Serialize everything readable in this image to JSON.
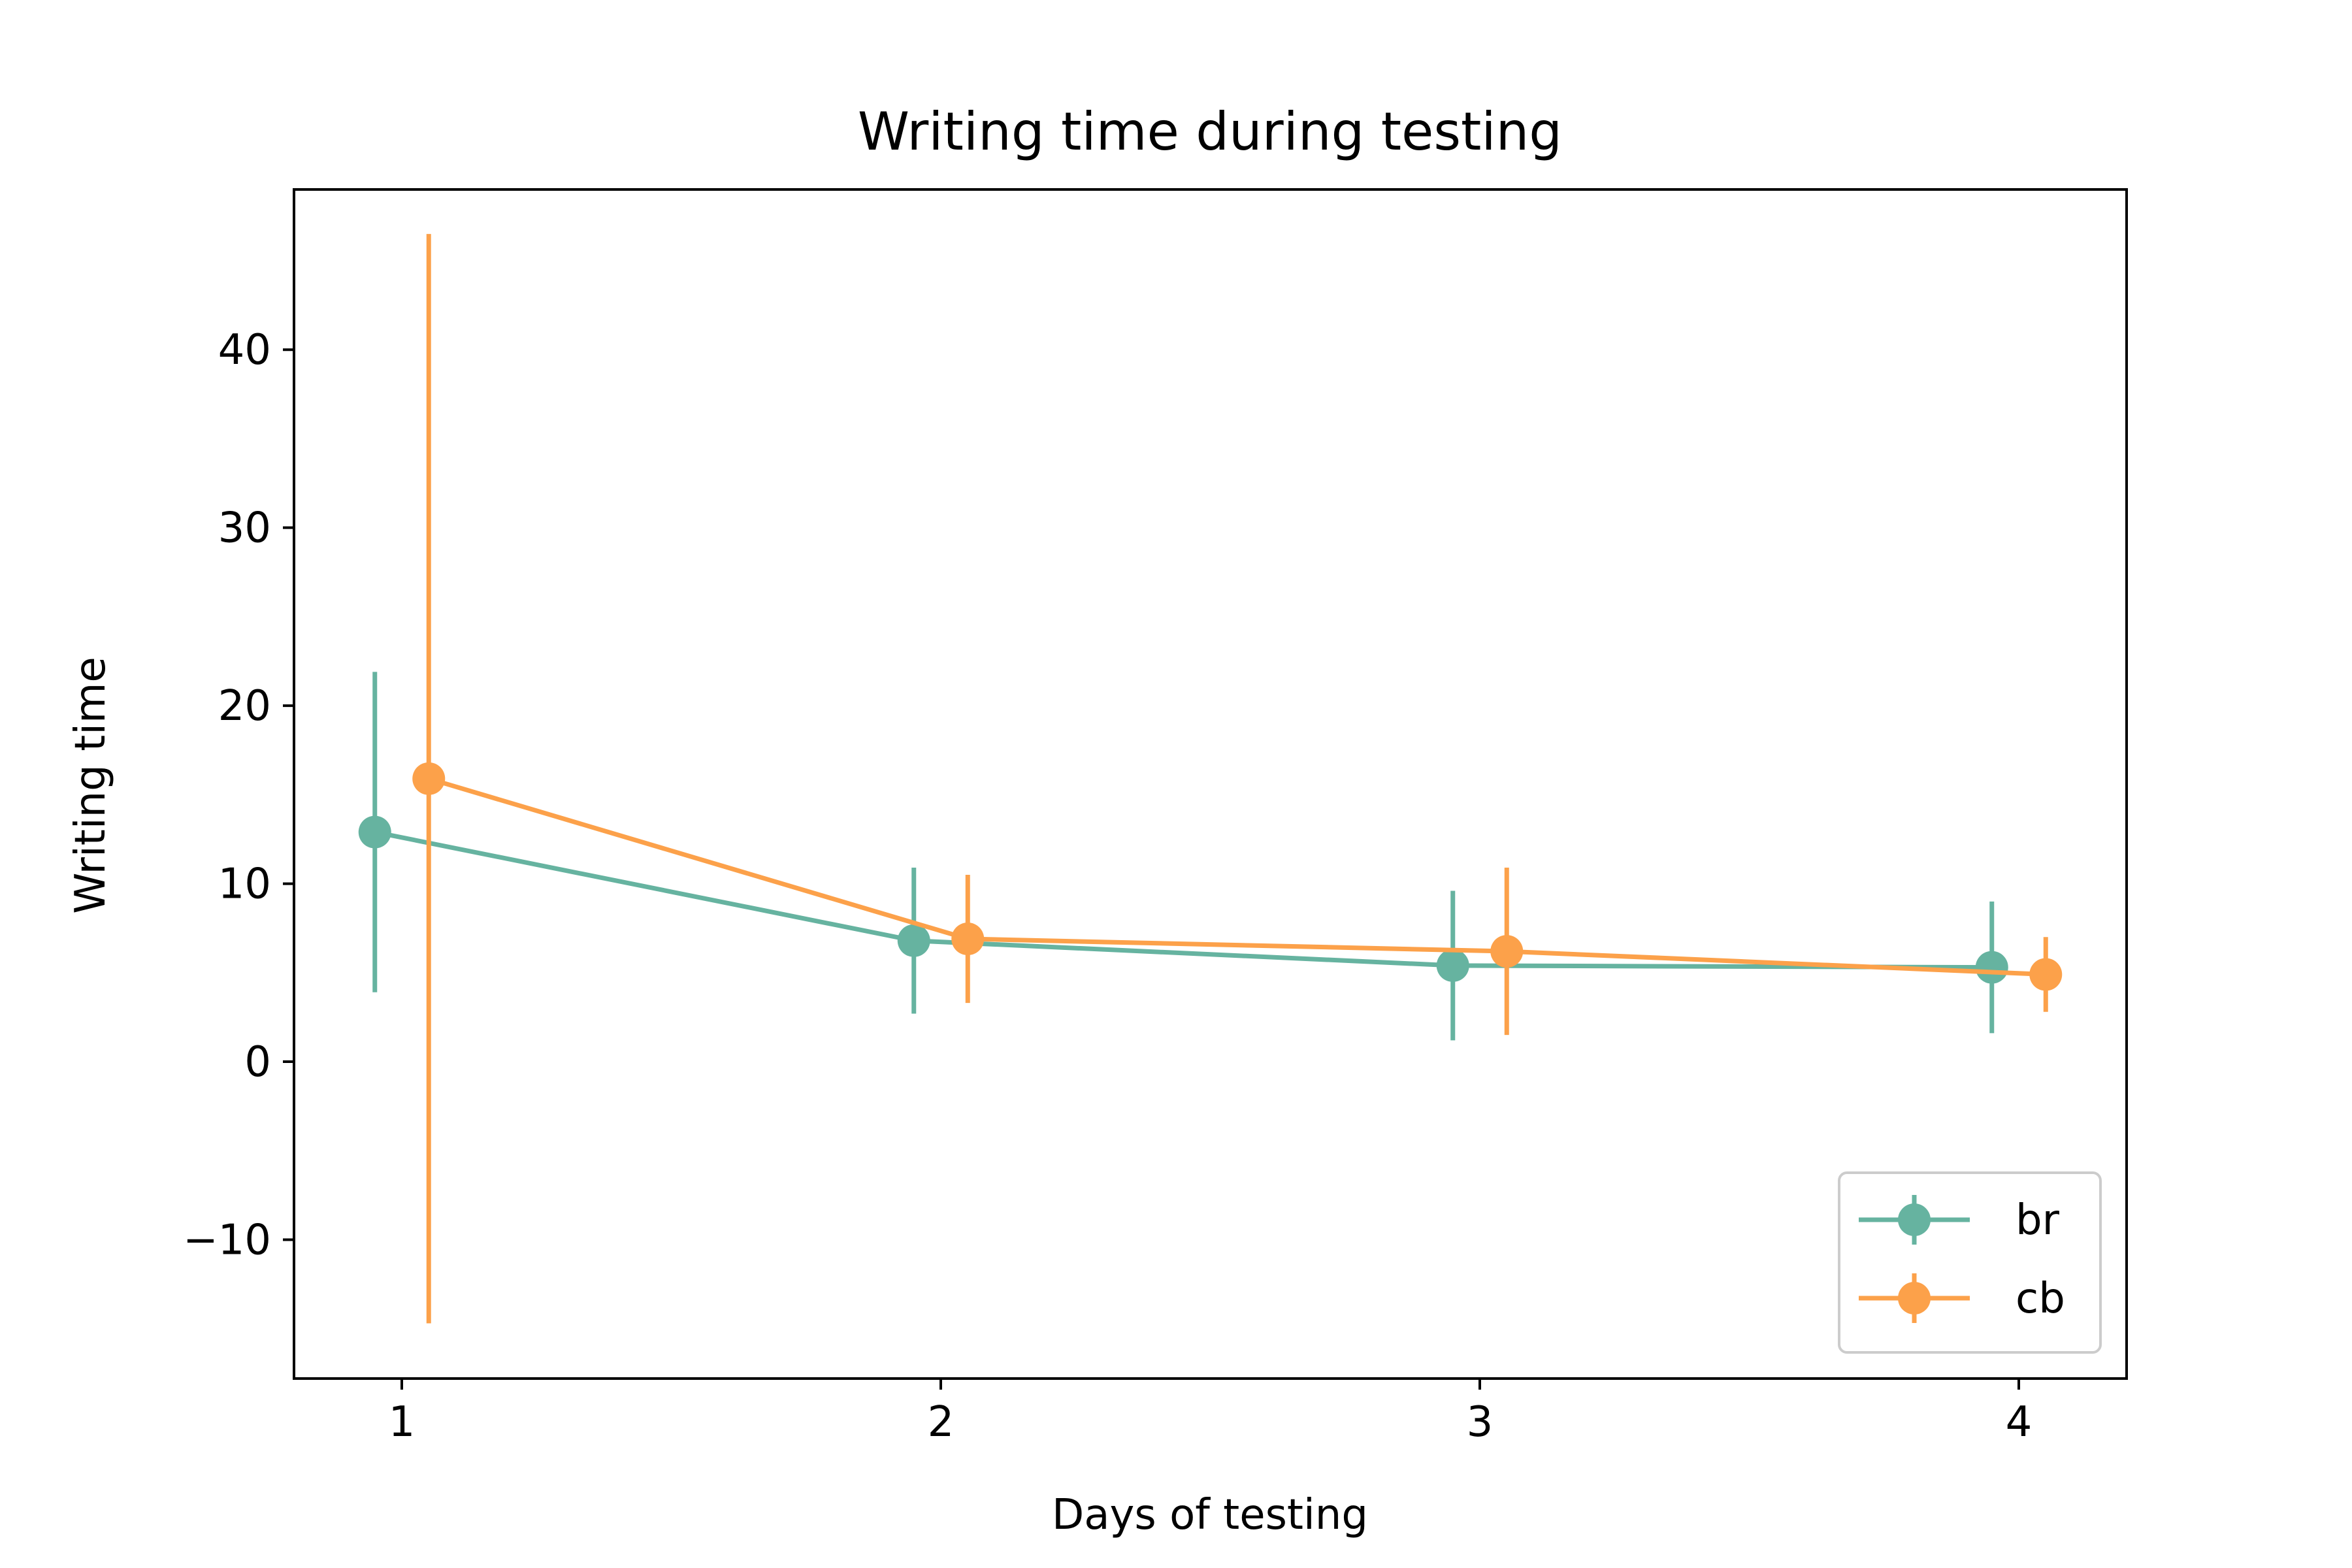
{
  "chart_data": {
    "type": "line",
    "title": "Writing time during testing",
    "xlabel": "Days of testing",
    "ylabel": "Writing time",
    "xlim": [
      0.8,
      4.2
    ],
    "ylim": [
      -17.8,
      49.0
    ],
    "x_ticks": [
      1,
      2,
      3,
      4
    ],
    "x_tick_labels": [
      "1",
      "2",
      "3",
      "4"
    ],
    "y_ticks": [
      -10,
      0,
      10,
      20,
      30,
      40
    ],
    "y_tick_labels": [
      "−10",
      "0",
      "10",
      "20",
      "30",
      "40"
    ],
    "grid": false,
    "legend_position": "bottom-right",
    "series": [
      {
        "name": "br",
        "color": "#66b3a0",
        "x": [
          0.95,
          1.95,
          2.95,
          3.95
        ],
        "y": [
          12.9,
          6.8,
          5.4,
          5.3
        ],
        "err": [
          9.0,
          4.1,
          4.2,
          3.7
        ]
      },
      {
        "name": "cb",
        "color": "#fca14a",
        "x": [
          1.05,
          2.05,
          3.05,
          4.05
        ],
        "y": [
          15.9,
          6.9,
          6.2,
          4.9
        ],
        "err": [
          30.6,
          3.6,
          4.7,
          2.1
        ]
      }
    ]
  }
}
